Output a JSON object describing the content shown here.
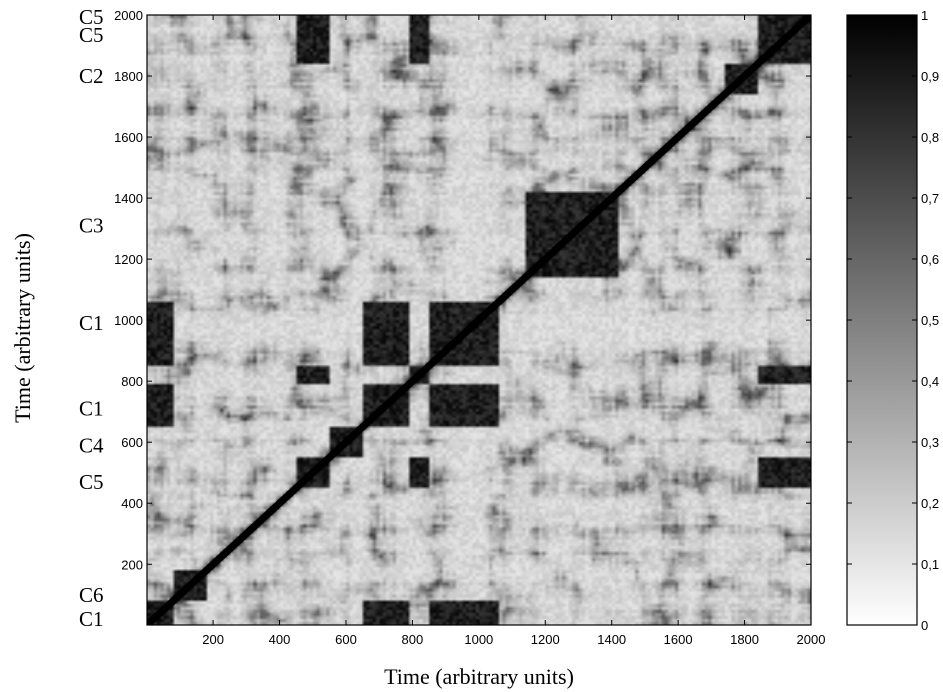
{
  "chart_data": {
    "type": "heatmap",
    "title": "",
    "xlabel": "Time (arbitrary units)",
    "ylabel": "Time (arbitrary units)",
    "xlim": [
      1,
      2000
    ],
    "ylim": [
      1,
      2000
    ],
    "x_ticks": [
      200,
      400,
      600,
      800,
      1000,
      1200,
      1400,
      1600,
      1800,
      2000
    ],
    "x_tick_labels": [
      "200",
      "400",
      "600",
      "800",
      "1000",
      "1200",
      "1400",
      "1600",
      "1800",
      "2000"
    ],
    "y_ticks": [
      200,
      400,
      600,
      800,
      1000,
      1200,
      1400,
      1600,
      1800,
      2000
    ],
    "y_tick_labels": [
      "200",
      "400",
      "600",
      "800",
      "1000",
      "1200",
      "1400",
      "1600",
      "1800",
      "2000"
    ],
    "colormap": "gray_reversed",
    "color_low": "#ffffff",
    "color_high": "#000000",
    "colorbar_range": [
      0,
      1
    ],
    "colorbar_ticks": [
      0,
      0.1,
      0.2,
      0.3,
      0.4,
      0.5,
      0.6,
      0.7,
      0.8,
      0.9,
      1
    ],
    "colorbar_tick_labels": [
      "0",
      "0,1",
      "0,2",
      "0,3",
      "0,4",
      "0,5",
      "0,6",
      "0,7",
      "0,8",
      "0,9",
      "1"
    ],
    "segment_labels": [
      {
        "label": "C5",
        "y": 2000
      },
      {
        "label": "C5",
        "y": 1935
      },
      {
        "label": "C2",
        "y": 1800
      },
      {
        "label": "C3",
        "y": 1310
      },
      {
        "label": "C1",
        "y": 990
      },
      {
        "label": "C1",
        "y": 710
      },
      {
        "label": "C4",
        "y": 590
      },
      {
        "label": "C5",
        "y": 470
      },
      {
        "label": "C6",
        "y": 100
      },
      {
        "label": "C1",
        "y": 20
      }
    ],
    "segments": [
      {
        "label": "C1",
        "start": 1,
        "end": 90
      },
      {
        "label": "C6",
        "start": 90,
        "end": 180
      },
      {
        "label": "C5",
        "start": 460,
        "end": 560
      },
      {
        "label": "C4",
        "start": 560,
        "end": 660
      },
      {
        "label": "C1",
        "start": 660,
        "end": 790
      },
      {
        "label": "C5",
        "start": 800,
        "end": 860
      },
      {
        "label": "C1",
        "start": 860,
        "end": 1060
      },
      {
        "label": "C3",
        "start": 1150,
        "end": 1420
      },
      {
        "label": "C2",
        "start": 1750,
        "end": 1850
      },
      {
        "label": "C5",
        "start": 1850,
        "end": 2000
      }
    ]
  }
}
